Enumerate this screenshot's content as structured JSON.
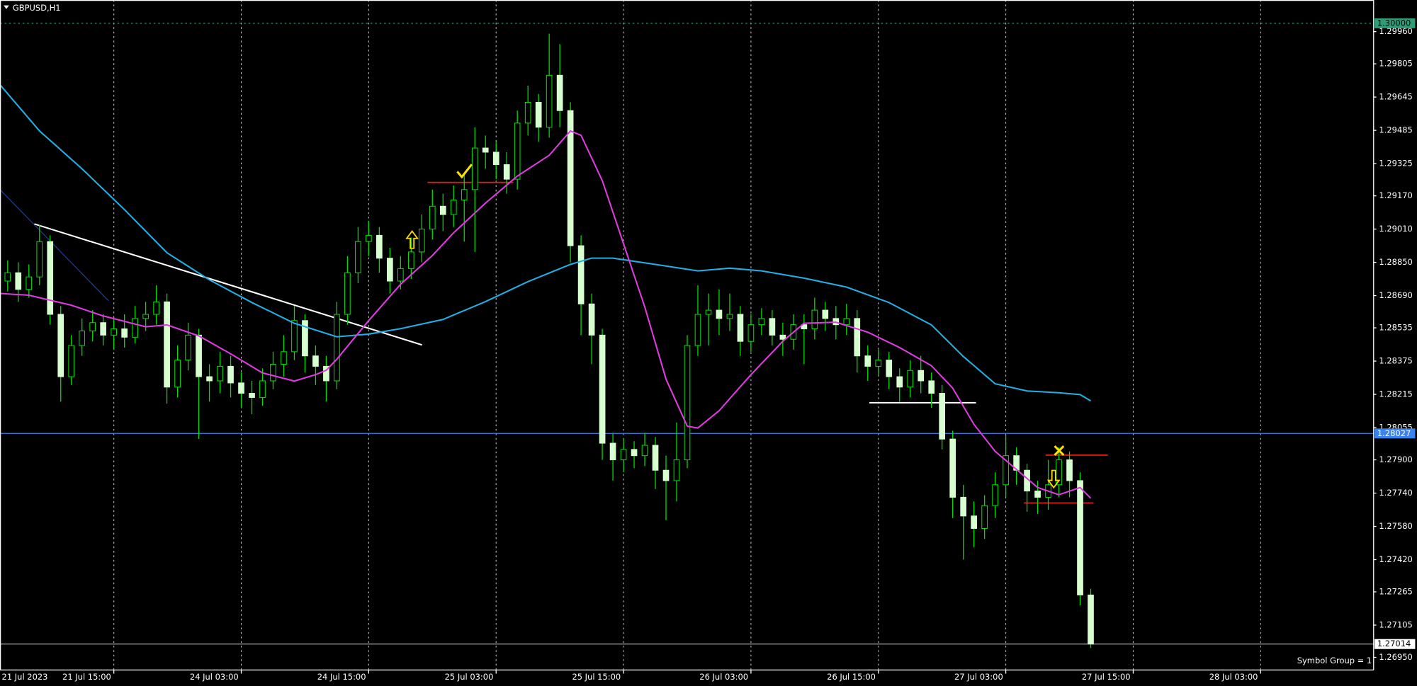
{
  "chart_data": {
    "type": "candlestick",
    "title": "GBPUSD,H1",
    "note": "Symbol Group = 1",
    "open": [
      1.287,
      1.2876,
      1.288,
      1.2872,
      1.2878,
      1.2895,
      1.286,
      1.283,
      1.2845,
      1.2852,
      1.2856,
      1.285,
      1.2853,
      1.2849,
      1.2858,
      1.286,
      1.2866,
      1.2825,
      1.2838,
      1.285,
      1.283,
      1.2828,
      1.2835,
      1.2827,
      1.2822,
      1.282,
      1.2828,
      1.2836,
      1.2842,
      1.2857,
      1.284,
      1.2835,
      1.2828,
      1.286,
      1.288,
      1.2895,
      1.2898,
      1.2887,
      1.2876,
      1.2882,
      1.289,
      1.2901,
      1.2912,
      1.2908,
      1.2915,
      1.292,
      1.294,
      1.2938,
      1.2932,
      1.2925,
      1.2952,
      1.2962,
      1.295,
      1.2975,
      1.2958,
      1.2893,
      1.2865,
      1.285,
      1.2798,
      1.279,
      1.2795,
      1.2792,
      1.2797,
      1.2785,
      1.278,
      1.279,
      1.2845,
      1.286,
      1.2862,
      1.2858,
      1.286,
      1.2847,
      1.2855,
      1.2858,
      1.285,
      1.2848,
      1.2855,
      1.2853,
      1.2862,
      1.2858,
      1.2855,
      1.2858,
      1.284,
      1.2835,
      1.2838,
      1.283,
      1.2825,
      1.2833,
      1.2828,
      1.2822,
      1.28,
      1.2772,
      1.2763,
      1.2757,
      1.2768,
      1.2778,
      1.2792,
      1.2785,
      1.2775,
      1.2772,
      1.2778,
      1.279,
      1.278,
      1.2725
    ],
    "high": [
      1.2882,
      1.2886,
      1.2885,
      1.2884,
      1.2903,
      1.2898,
      1.2864,
      1.285,
      1.2858,
      1.2862,
      1.286,
      1.2858,
      1.286,
      1.2864,
      1.2866,
      1.2874,
      1.287,
      1.2845,
      1.2856,
      1.2853,
      1.2836,
      1.2842,
      1.284,
      1.2832,
      1.2828,
      1.2834,
      1.2842,
      1.285,
      1.2864,
      1.286,
      1.2845,
      1.284,
      1.2866,
      1.2888,
      1.2902,
      1.2905,
      1.2902,
      1.2892,
      1.2888,
      1.2897,
      1.2908,
      1.292,
      1.2918,
      1.2922,
      1.2928,
      1.295,
      1.2946,
      1.2943,
      1.2938,
      1.2958,
      1.297,
      1.2966,
      1.2995,
      1.299,
      1.2962,
      1.2898,
      1.287,
      1.2853,
      1.2803,
      1.28,
      1.2799,
      1.2803,
      1.2801,
      1.2792,
      1.2808,
      1.285,
      1.2874,
      1.287,
      1.2872,
      1.287,
      1.2864,
      1.286,
      1.2863,
      1.2862,
      1.2856,
      1.286,
      1.286,
      1.2868,
      1.2866,
      1.2864,
      1.2865,
      1.2862,
      1.2845,
      1.2843,
      1.2842,
      1.2834,
      1.2838,
      1.284,
      1.2832,
      1.2826,
      1.2804,
      1.2778,
      1.277,
      1.2773,
      1.2784,
      1.2802,
      1.2796,
      1.2788,
      1.278,
      1.279,
      1.2796,
      1.2794,
      1.2784,
      1.2728
    ],
    "low": [
      1.2865,
      1.2871,
      1.2866,
      1.2868,
      1.2874,
      1.2855,
      1.2818,
      1.2826,
      1.284,
      1.2847,
      1.2845,
      1.2843,
      1.2844,
      1.2846,
      1.2852,
      1.2855,
      1.2817,
      1.282,
      1.2833,
      1.28,
      1.2818,
      1.2822,
      1.282,
      1.2815,
      1.2812,
      1.2816,
      1.2824,
      1.283,
      1.2838,
      1.2832,
      1.2826,
      1.2818,
      1.2824,
      1.2855,
      1.2875,
      1.2888,
      1.288,
      1.287,
      1.2872,
      1.2877,
      1.2885,
      1.2896,
      1.29,
      1.2902,
      1.2895,
      1.289,
      1.293,
      1.2925,
      1.2918,
      1.292,
      1.2946,
      1.2943,
      1.2945,
      1.295,
      1.2885,
      1.285,
      1.2836,
      1.279,
      1.278,
      1.2784,
      1.2786,
      1.2787,
      1.2776,
      1.2761,
      1.277,
      1.2786,
      1.284,
      1.2845,
      1.285,
      1.2852,
      1.284,
      1.2842,
      1.285,
      1.2845,
      1.284,
      1.2843,
      1.2836,
      1.2848,
      1.2852,
      1.2848,
      1.285,
      1.2832,
      1.2828,
      1.283,
      1.2824,
      1.2818,
      1.282,
      1.2822,
      1.2815,
      1.2795,
      1.2762,
      1.2742,
      1.2748,
      1.2752,
      1.2762,
      1.2772,
      1.2778,
      1.2765,
      1.2764,
      1.2766,
      1.2772,
      1.2772,
      1.272,
      1.26995
    ],
    "close": [
      1.2876,
      1.288,
      1.2872,
      1.2878,
      1.2895,
      1.286,
      1.283,
      1.2845,
      1.2852,
      1.2856,
      1.285,
      1.2853,
      1.2849,
      1.2858,
      1.286,
      1.2866,
      1.2825,
      1.2838,
      1.285,
      1.283,
      1.2828,
      1.2835,
      1.2827,
      1.2822,
      1.282,
      1.2828,
      1.2836,
      1.2842,
      1.2857,
      1.284,
      1.2835,
      1.2828,
      1.286,
      1.288,
      1.2895,
      1.2898,
      1.2887,
      1.2876,
      1.2882,
      1.289,
      1.2901,
      1.2912,
      1.2908,
      1.2915,
      1.292,
      1.294,
      1.2938,
      1.2932,
      1.2925,
      1.2952,
      1.2962,
      1.295,
      1.2975,
      1.2958,
      1.2893,
      1.2865,
      1.285,
      1.2798,
      1.279,
      1.2795,
      1.2792,
      1.2797,
      1.2785,
      1.278,
      1.279,
      1.2845,
      1.286,
      1.2862,
      1.2858,
      1.286,
      1.2847,
      1.2855,
      1.2858,
      1.285,
      1.2848,
      1.2855,
      1.2853,
      1.2862,
      1.2858,
      1.2855,
      1.2858,
      1.284,
      1.2835,
      1.2838,
      1.283,
      1.2825,
      1.2833,
      1.2828,
      1.2822,
      1.28,
      1.2772,
      1.2763,
      1.2757,
      1.2768,
      1.2778,
      1.2792,
      1.2785,
      1.2775,
      1.2772,
      1.2778,
      1.279,
      1.278,
      1.2725,
      1.27014
    ],
    "up_color": "#000000",
    "down_color": "#d8ffd0",
    "wick_color": "#00e000",
    "overlays": [
      {
        "color": "#22b0e6",
        "x": [
          0,
          4,
          8,
          12,
          16,
          20,
          24,
          28,
          32,
          35,
          38,
          42,
          46,
          50,
          54,
          56,
          58,
          62,
          66,
          69,
          72,
          76,
          80,
          84,
          88,
          91,
          94,
          97,
          100,
          102,
          103
        ],
        "values": [
          1.29721,
          1.29482,
          1.293,
          1.29104,
          1.28896,
          1.28766,
          1.28657,
          1.28557,
          1.28492,
          1.28505,
          1.28531,
          1.28575,
          1.28661,
          1.28757,
          1.2884,
          1.2887,
          1.2887,
          1.2884,
          1.28809,
          1.28822,
          1.28809,
          1.28774,
          1.28731,
          1.28657,
          1.28549,
          1.28397,
          1.28266,
          1.28231,
          1.28223,
          1.28214,
          1.28184
        ]
      },
      {
        "color": "#e03ce0",
        "x": [
          0,
          3,
          7,
          10,
          14,
          16,
          19,
          22,
          25,
          28,
          30,
          31,
          32,
          35,
          38,
          41,
          43,
          46,
          49,
          52,
          54,
          55,
          57,
          59,
          61,
          63,
          65,
          66,
          68,
          71,
          74,
          76,
          79,
          82,
          85,
          88,
          90,
          92,
          94,
          96,
          98,
          100,
          102,
          103
        ],
        "values": [
          1.28701,
          1.28692,
          1.28644,
          1.28592,
          1.2854,
          1.28549,
          1.28496,
          1.2841,
          1.28318,
          1.28279,
          1.2831,
          1.28331,
          1.28384,
          1.2857,
          1.28744,
          1.28883,
          1.28992,
          1.29135,
          1.29265,
          1.29365,
          1.29482,
          1.29461,
          1.29243,
          1.28939,
          1.28635,
          1.28288,
          1.28062,
          1.28053,
          1.28136,
          1.2831,
          1.2847,
          1.28557,
          1.28562,
          1.28514,
          1.2844,
          1.28353,
          1.28245,
          1.28071,
          1.27941,
          1.27854,
          1.27767,
          1.27732,
          1.27767,
          1.27715
        ]
      }
    ],
    "levels": [
      {
        "value": 1.3,
        "label": "1.30000",
        "color": "#2e9c74",
        "label_bg": "#2e9c74",
        "label_color": "#000000",
        "dashed": true
      },
      {
        "value": 1.28027,
        "label": "1.28027",
        "color": "#3b82f0",
        "label_bg": "#3b82f0",
        "label_color": "#ffffff",
        "dashed": false
      },
      {
        "value": 1.27014,
        "label": "1.27014",
        "color": "#a0a0a0",
        "label_bg": "#ffffff",
        "label_color": "#000000",
        "dashed": false
      }
    ],
    "ylim": [
      1.26889,
      1.30112
    ],
    "yticks": [
      {
        "value": 1.2996,
        "label": "1.29960"
      },
      1.29805,
      1.29645,
      1.29485,
      1.29325,
      {
        "value": 1.2917,
        "label": "1.29170"
      },
      {
        "value": 1.2901,
        "label": "1.29010"
      },
      {
        "value": 1.2885,
        "label": "1.28850"
      },
      {
        "value": 1.2869,
        "label": "1.28690"
      },
      1.28535,
      1.28375,
      1.28215,
      1.28055,
      {
        "value": 1.279,
        "label": "1.27900"
      },
      {
        "value": 1.2774,
        "label": "1.27740"
      },
      {
        "value": 1.2758,
        "label": "1.27580"
      },
      {
        "value": 1.2742,
        "label": "1.27420"
      },
      1.27265,
      1.27105,
      {
        "value": 1.2695,
        "label": "1.26950"
      }
    ],
    "xlim": [
      0.28,
      129.64
    ],
    "xticks": [
      {
        "value": 0.45,
        "label": "21 Jul 2023"
      },
      {
        "value": 11,
        "label": "21 Jul 15:00"
      },
      {
        "value": 23,
        "label": "24 Jul 03:00"
      },
      {
        "value": 35,
        "label": "24 Jul 15:00"
      },
      {
        "value": 47,
        "label": "25 Jul 03:00"
      },
      {
        "value": 59,
        "label": "25 Jul 15:00"
      },
      {
        "value": 71,
        "label": "26 Jul 03:00"
      },
      {
        "value": 83,
        "label": "26 Jul 15:00"
      },
      {
        "value": 95,
        "label": "27 Jul 03:00"
      },
      {
        "value": 107,
        "label": "27 Jul 15:00"
      },
      {
        "value": 119,
        "label": "28 Jul 03:00"
      }
    ],
    "grid": true
  }
}
